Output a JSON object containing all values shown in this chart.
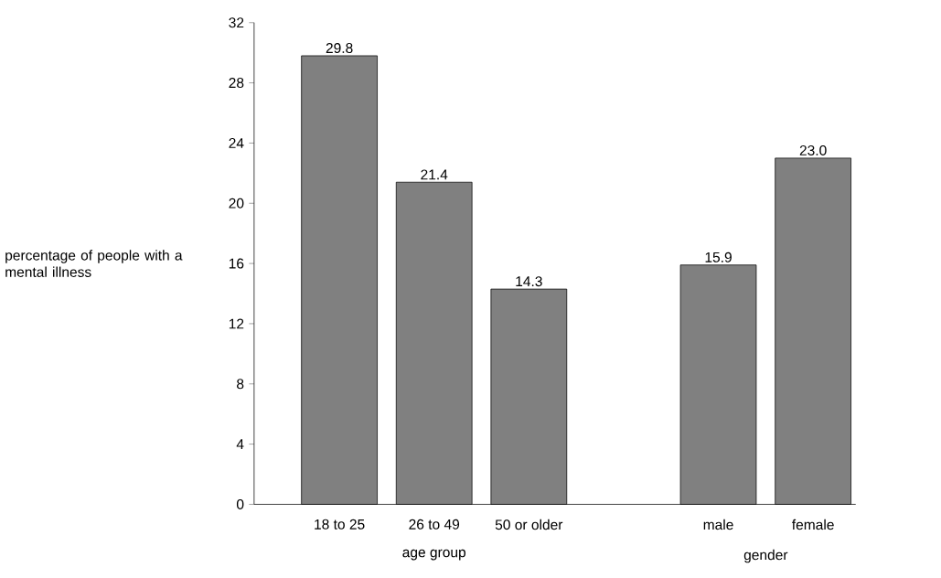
{
  "chart_data": {
    "type": "bar",
    "ylabel": "percentage of people with a mental illness",
    "categories": [
      "18 to 25",
      "26 to 49",
      "50 or older",
      null,
      "male",
      "female"
    ],
    "values": [
      29.8,
      21.4,
      14.3,
      null,
      15.9,
      23.0
    ],
    "value_labels": [
      "29.8",
      "21.4",
      "14.3",
      null,
      "15.9",
      "23.0"
    ],
    "color": "#808080",
    "ylim": [
      0,
      32
    ],
    "yticks": [
      0,
      4,
      8,
      12,
      16,
      20,
      24,
      28,
      32
    ],
    "annotations": [
      "age group",
      "gender"
    ],
    "grid": false
  }
}
